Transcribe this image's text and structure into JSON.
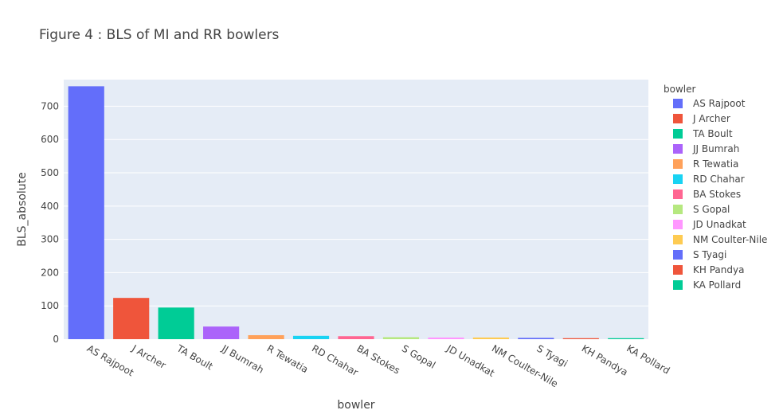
{
  "chart_data": {
    "type": "bar",
    "title": "Figure 4 : BLS of MI and RR bowlers",
    "xlabel": "bowler",
    "ylabel": "BLS_absolute",
    "ylim": [
      0,
      780
    ],
    "yticks": [
      0,
      100,
      200,
      300,
      400,
      500,
      600,
      700
    ],
    "categories": [
      "AS Rajpoot",
      "J Archer",
      "TA Boult",
      "JJ Bumrah",
      "R Tewatia",
      "RD Chahar",
      "BA Stokes",
      "S Gopal",
      "JD Unadkat",
      "NM Coulter-Nile",
      "S Tyagi",
      "KH Pandya",
      "KA Pollard"
    ],
    "values": [
      760,
      124,
      95,
      38,
      12,
      10,
      9,
      6,
      5,
      5,
      4,
      3,
      3
    ],
    "colors": [
      "#636efa",
      "#EF553B",
      "#00cc96",
      "#ab63fa",
      "#FFA15A",
      "#19d3f3",
      "#FF6692",
      "#B6E880",
      "#FF97FF",
      "#FECB52",
      "#636efa",
      "#EF553B",
      "#00cc96"
    ],
    "legend": {
      "title": "bowler",
      "position": "right"
    },
    "grid": true
  }
}
